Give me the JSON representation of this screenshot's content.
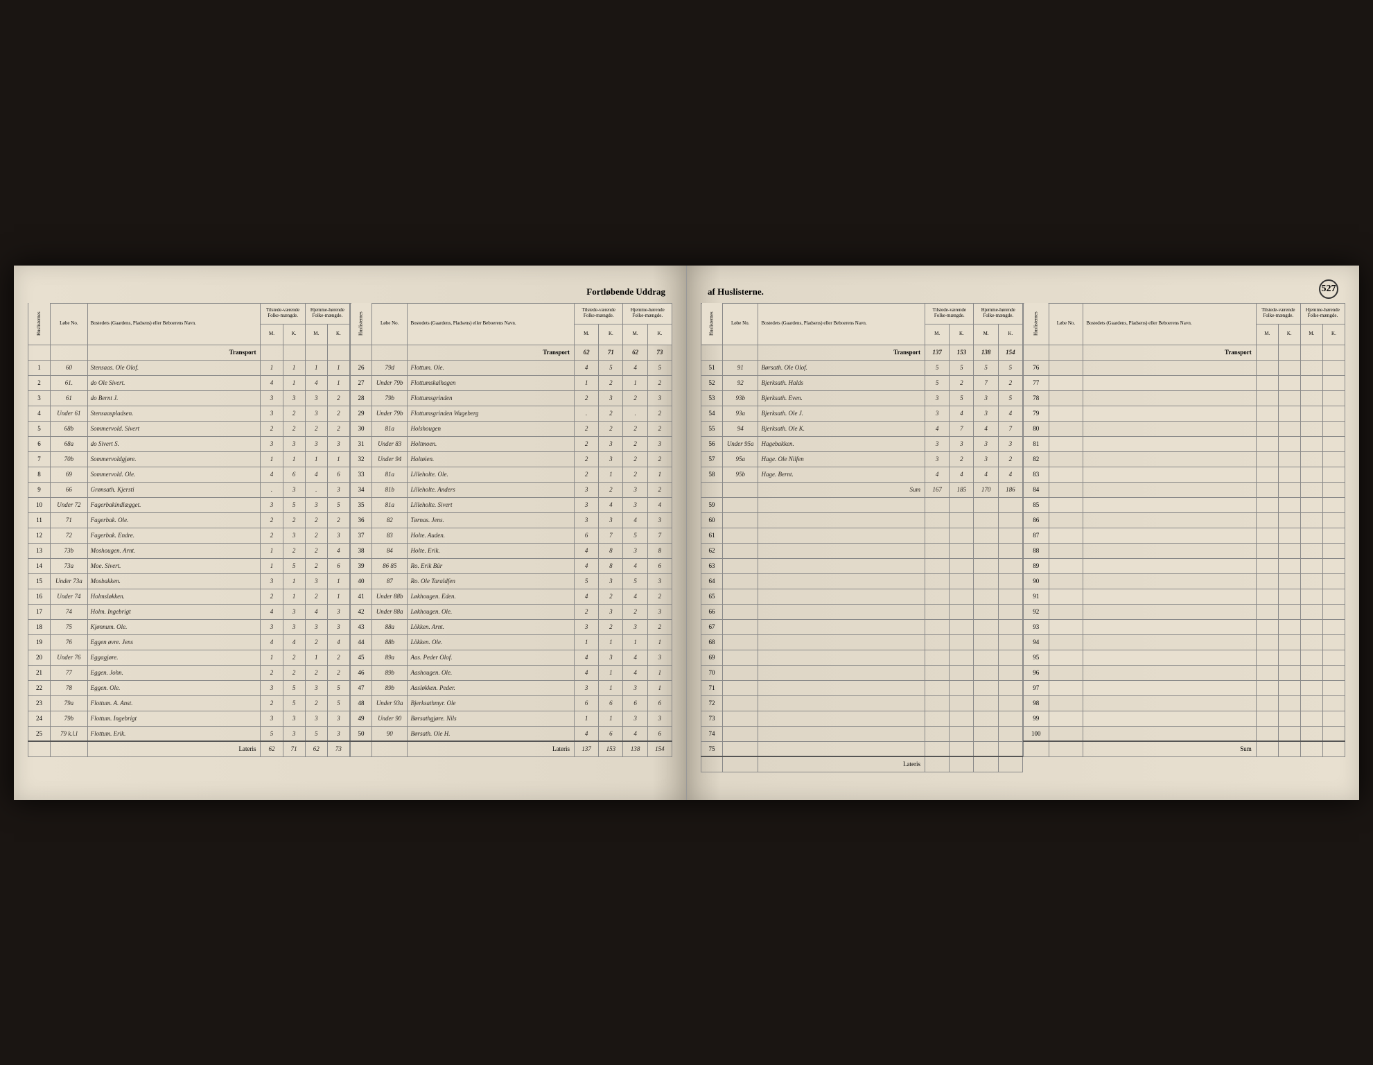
{
  "title_left": "Fortløbende Uddrag",
  "title_right": "af Huslisterne.",
  "page_number": "527",
  "headers": {
    "huslisterne": "Huslisternes",
    "lobe": "Løbe No.",
    "bosted": "Bostedets (Gaardens, Pladsens) eller Beboerens Navn.",
    "tilstede": "Tilstede-værende Folke-mængde.",
    "hjemme": "Hjemme-hørende Folke-mængde.",
    "m": "M.",
    "k": "K."
  },
  "transport_label": "Transport",
  "lateris_label": "Lateris",
  "sum_label": "Sum",
  "section1": {
    "transport": [
      "",
      "",
      "",
      ""
    ],
    "rows": [
      {
        "idx": "1",
        "lobe": "60",
        "name": "Stensaas. Ole Olof.",
        "m1": "1",
        "k1": "1",
        "m2": "1",
        "k2": "1"
      },
      {
        "idx": "2",
        "lobe": "61.",
        "name": "do    Ole Sivert.",
        "m1": "4",
        "k1": "1",
        "m2": "4",
        "k2": "1"
      },
      {
        "idx": "3",
        "lobe": "61",
        "name": "do    Bernt J.",
        "m1": "3",
        "k1": "3",
        "m2": "3",
        "k2": "2"
      },
      {
        "idx": "4",
        "lobe": "Under 61",
        "name": "Stensaaspladsen.",
        "m1": "3",
        "k1": "2",
        "m2": "3",
        "k2": "2"
      },
      {
        "idx": "5",
        "lobe": "68b",
        "name": "Sommervold. Sivert",
        "m1": "2",
        "k1": "2",
        "m2": "2",
        "k2": "2"
      },
      {
        "idx": "6",
        "lobe": "68a",
        "name": "do    Sivert S.",
        "m1": "3",
        "k1": "3",
        "m2": "3",
        "k2": "3"
      },
      {
        "idx": "7",
        "lobe": "70b",
        "name": "Sommervoldgjøre.",
        "m1": "1",
        "k1": "1",
        "m2": "1",
        "k2": "1"
      },
      {
        "idx": "8",
        "lobe": "69",
        "name": "Sommervold. Ole.",
        "m1": "4",
        "k1": "6",
        "m2": "4",
        "k2": "6"
      },
      {
        "idx": "9",
        "lobe": "66",
        "name": "Grønsath. Kjersti",
        "m1": ".",
        "k1": "3",
        "m2": ".",
        "k2": "3"
      },
      {
        "idx": "10",
        "lobe": "Under 72",
        "name": "Fagerbakindlægget.",
        "m1": "3",
        "k1": "5",
        "m2": "3",
        "k2": "5"
      },
      {
        "idx": "11",
        "lobe": "71",
        "name": "Fagerbak. Ole.",
        "m1": "2",
        "k1": "2",
        "m2": "2",
        "k2": "2"
      },
      {
        "idx": "12",
        "lobe": "72",
        "name": "Fagerbak. Endre.",
        "m1": "2",
        "k1": "3",
        "m2": "2",
        "k2": "3"
      },
      {
        "idx": "13",
        "lobe": "73b",
        "name": "Moshougen. Arnt.",
        "m1": "1",
        "k1": "2",
        "m2": "2",
        "k2": "4"
      },
      {
        "idx": "14",
        "lobe": "73a",
        "name": "Moe. Sivert.",
        "m1": "1",
        "k1": "5",
        "m2": "2",
        "k2": "6"
      },
      {
        "idx": "15",
        "lobe": "Under 73a",
        "name": "Mosbakken.",
        "m1": "3",
        "k1": "1",
        "m2": "3",
        "k2": "1"
      },
      {
        "idx": "16",
        "lobe": "Under 74",
        "name": "Holmsløkken.",
        "m1": "2",
        "k1": "1",
        "m2": "2",
        "k2": "1"
      },
      {
        "idx": "17",
        "lobe": "74",
        "name": "Holm. Ingebrigt",
        "m1": "4",
        "k1": "3",
        "m2": "4",
        "k2": "3"
      },
      {
        "idx": "18",
        "lobe": "75",
        "name": "Kjønnum. Ole.",
        "m1": "3",
        "k1": "3",
        "m2": "3",
        "k2": "3"
      },
      {
        "idx": "19",
        "lobe": "76",
        "name": "Eggen øvre. Jens",
        "m1": "4",
        "k1": "4",
        "m2": "2",
        "k2": "4"
      },
      {
        "idx": "20",
        "lobe": "Under 76",
        "name": "Eggagjøre.",
        "m1": "1",
        "k1": "2",
        "m2": "1",
        "k2": "2"
      },
      {
        "idx": "21",
        "lobe": "77",
        "name": "Eggen. John.",
        "m1": "2",
        "k1": "2",
        "m2": "2",
        "k2": "2"
      },
      {
        "idx": "22",
        "lobe": "78",
        "name": "Eggen. Ole.",
        "m1": "3",
        "k1": "5",
        "m2": "3",
        "k2": "5"
      },
      {
        "idx": "23",
        "lobe": "79a",
        "name": "Flottum. A. Anst.",
        "m1": "2",
        "k1": "5",
        "m2": "2",
        "k2": "5"
      },
      {
        "idx": "24",
        "lobe": "79b",
        "name": "Flottum. Ingebrigt",
        "m1": "3",
        "k1": "3",
        "m2": "3",
        "k2": "3"
      },
      {
        "idx": "25",
        "lobe": "79 k.l.l",
        "name": "Flottum. Erik.",
        "m1": "5",
        "k1": "3",
        "m2": "5",
        "k2": "3"
      }
    ],
    "lateris": [
      "62",
      "71",
      "62",
      "73"
    ]
  },
  "section2": {
    "transport": [
      "62",
      "71",
      "62",
      "73"
    ],
    "rows": [
      {
        "idx": "26",
        "lobe": "79d",
        "name": "Flottum. Ole.",
        "m1": "4",
        "k1": "5",
        "m2": "4",
        "k2": "5"
      },
      {
        "idx": "27",
        "lobe": "Under 79b",
        "name": "Flottumskalhagen",
        "m1": "1",
        "k1": "2",
        "m2": "1",
        "k2": "2"
      },
      {
        "idx": "28",
        "lobe": "79b",
        "name": "Flottumsgrinden",
        "m1": "2",
        "k1": "3",
        "m2": "2",
        "k2": "3"
      },
      {
        "idx": "29",
        "lobe": "Under 79b",
        "name": "Flottumsgrinden Wageberg",
        "m1": ".",
        "k1": "2",
        "m2": ".",
        "k2": "2"
      },
      {
        "idx": "30",
        "lobe": "81a",
        "name": "Holshougen",
        "m1": "2",
        "k1": "2",
        "m2": "2",
        "k2": "2"
      },
      {
        "idx": "31",
        "lobe": "Under 83",
        "name": "Holtmoen.",
        "m1": "2",
        "k1": "3",
        "m2": "2",
        "k2": "3"
      },
      {
        "idx": "32",
        "lobe": "Under 94",
        "name": "Holtøien.",
        "m1": "2",
        "k1": "3",
        "m2": "2",
        "k2": "2"
      },
      {
        "idx": "33",
        "lobe": "81a",
        "name": "Lilleholte. Ole.",
        "m1": "2",
        "k1": "1",
        "m2": "2",
        "k2": "1"
      },
      {
        "idx": "34",
        "lobe": "81b",
        "name": "Lilleholte. Anders",
        "m1": "3",
        "k1": "2",
        "m2": "3",
        "k2": "2"
      },
      {
        "idx": "35",
        "lobe": "81a",
        "name": "Lilleholte. Sivert",
        "m1": "3",
        "k1": "4",
        "m2": "3",
        "k2": "4"
      },
      {
        "idx": "36",
        "lobe": "82",
        "name": "Tørnas. Jens.",
        "m1": "3",
        "k1": "3",
        "m2": "4",
        "k2": "3"
      },
      {
        "idx": "37",
        "lobe": "83",
        "name": "Holte. Auden.",
        "m1": "6",
        "k1": "7",
        "m2": "5",
        "k2": "7"
      },
      {
        "idx": "38",
        "lobe": "84",
        "name": "Holte. Erik.",
        "m1": "4",
        "k1": "8",
        "m2": "3",
        "k2": "8"
      },
      {
        "idx": "39",
        "lobe": "86 85",
        "name": "Ro. Erik Bür",
        "m1": "4",
        "k1": "8",
        "m2": "4",
        "k2": "6"
      },
      {
        "idx": "40",
        "lobe": "87",
        "name": "Ro. Ole Taraldfen",
        "m1": "5",
        "k1": "3",
        "m2": "5",
        "k2": "3"
      },
      {
        "idx": "41",
        "lobe": "Under 88b",
        "name": "Løkhougen. Eden.",
        "m1": "4",
        "k1": "2",
        "m2": "4",
        "k2": "2"
      },
      {
        "idx": "42",
        "lobe": "Under 88a",
        "name": "Løkhougen. Ole.",
        "m1": "2",
        "k1": "3",
        "m2": "2",
        "k2": "3"
      },
      {
        "idx": "43",
        "lobe": "88a",
        "name": "Lökken. Arnt.",
        "m1": "3",
        "k1": "2",
        "m2": "3",
        "k2": "2"
      },
      {
        "idx": "44",
        "lobe": "88b",
        "name": "Lökken. Ole.",
        "m1": "1",
        "k1": "1",
        "m2": "1",
        "k2": "1"
      },
      {
        "idx": "45",
        "lobe": "89a",
        "name": "Aas. Peder Olof.",
        "m1": "4",
        "k1": "3",
        "m2": "4",
        "k2": "3"
      },
      {
        "idx": "46",
        "lobe": "89b",
        "name": "Aashougen. Ole.",
        "m1": "4",
        "k1": "1",
        "m2": "4",
        "k2": "1"
      },
      {
        "idx": "47",
        "lobe": "89b",
        "name": "Aasløkken. Peder.",
        "m1": "3",
        "k1": "1",
        "m2": "3",
        "k2": "1"
      },
      {
        "idx": "48",
        "lobe": "Under 93a",
        "name": "Bjerksathmyr. Ole",
        "m1": "6",
        "k1": "6",
        "m2": "6",
        "k2": "6"
      },
      {
        "idx": "49",
        "lobe": "Under 90",
        "name": "Børsathgjøre. Nils",
        "m1": "1",
        "k1": "1",
        "m2": "3",
        "k2": "3"
      },
      {
        "idx": "50",
        "lobe": "90",
        "name": "Børsath. Ole H.",
        "m1": "4",
        "k1": "6",
        "m2": "4",
        "k2": "6"
      }
    ],
    "lateris": [
      "137",
      "153",
      "138",
      "154"
    ]
  },
  "section3": {
    "transport": [
      "137",
      "153",
      "138",
      "154"
    ],
    "rows": [
      {
        "idx": "51",
        "lobe": "91",
        "name": "Børsath. Ole Olof.",
        "m1": "5",
        "k1": "5",
        "m2": "5",
        "k2": "5"
      },
      {
        "idx": "52",
        "lobe": "92",
        "name": "Bjerksath. Halds",
        "m1": "5",
        "k1": "2",
        "m2": "7",
        "k2": "2"
      },
      {
        "idx": "53",
        "lobe": "93b",
        "name": "Bjerksath. Even.",
        "m1": "3",
        "k1": "5",
        "m2": "3",
        "k2": "5"
      },
      {
        "idx": "54",
        "lobe": "93a",
        "name": "Bjerksath. Ole J.",
        "m1": "3",
        "k1": "4",
        "m2": "3",
        "k2": "4"
      },
      {
        "idx": "55",
        "lobe": "94",
        "name": "Bjerksath. Ole K.",
        "m1": "4",
        "k1": "7",
        "m2": "4",
        "k2": "7"
      },
      {
        "idx": "56",
        "lobe": "Under 95a",
        "name": "Hagebakken.",
        "m1": "3",
        "k1": "3",
        "m2": "3",
        "k2": "3"
      },
      {
        "idx": "57",
        "lobe": "95a",
        "name": "Hage. Ole Nilfen",
        "m1": "3",
        "k1": "2",
        "m2": "3",
        "k2": "2"
      },
      {
        "idx": "58",
        "lobe": "95b",
        "name": "Hage. Bernt.",
        "m1": "4",
        "k1": "4",
        "m2": "4",
        "k2": "4"
      }
    ],
    "sum_label": "Sum",
    "sum": [
      "167",
      "185",
      "170",
      "186"
    ],
    "empty_start": 59,
    "empty_end": 75
  },
  "section4": {
    "empty_start": 76,
    "empty_end": 100
  }
}
